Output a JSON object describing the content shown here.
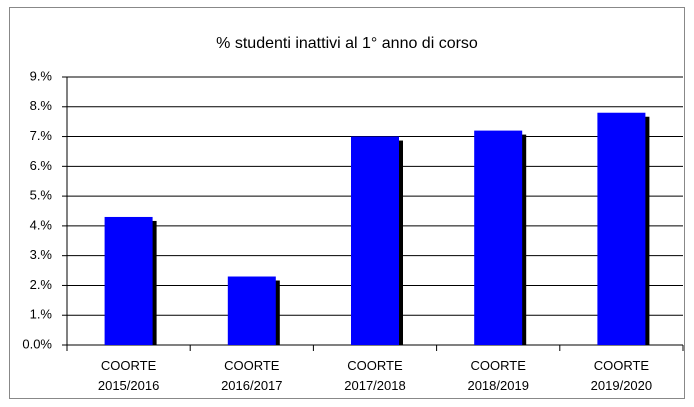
{
  "chart_data": {
    "type": "bar",
    "title": "% studenti inattivi al 1° anno di corso",
    "categories": [
      "COORTE 2015/2016",
      "COORTE 2016/2017",
      "COORTE 2017/2018",
      "COORTE 2018/2019",
      "COORTE 2019/2020"
    ],
    "values": [
      4.3,
      2.3,
      7.0,
      7.2,
      7.8
    ],
    "color": "#0000ff",
    "ylim": [
      0,
      9
    ],
    "yticks": [
      {
        "value": 0,
        "label": "0.0%"
      },
      {
        "value": 1,
        "label": "1.%"
      },
      {
        "value": 2,
        "label": "2.%"
      },
      {
        "value": 3,
        "label": "3.%"
      },
      {
        "value": 4,
        "label": "4.%"
      },
      {
        "value": 5,
        "label": "5.%"
      },
      {
        "value": 6,
        "label": "6.%"
      },
      {
        "value": 7,
        "label": "7.%"
      },
      {
        "value": 8,
        "label": "8.%"
      },
      {
        "value": 9,
        "label": "9.%"
      }
    ],
    "grid": true
  }
}
